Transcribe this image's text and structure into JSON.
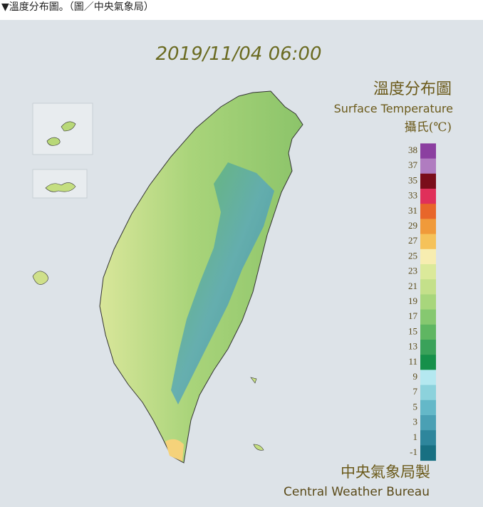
{
  "caption": "▼溫度分布圖。（圖／中央氣象局）",
  "map": {
    "timestamp": "2019/11/04 06:00",
    "legend": {
      "title": "溫度分布圖",
      "subtitle": "Surface Temperature",
      "unit": "攝氏(℃)",
      "labels": [
        38,
        37,
        35,
        33,
        31,
        29,
        27,
        25,
        23,
        21,
        19,
        17,
        15,
        13,
        11,
        9,
        7,
        5,
        3,
        1,
        -1
      ],
      "colors": [
        "#8b3fa0",
        "#b07cc0",
        "#7a0d1a",
        "#e0305a",
        "#e8662a",
        "#f09a3a",
        "#f5c25a",
        "#f7edb0",
        "#dbe99a",
        "#c4e08a",
        "#a8d67c",
        "#86c870",
        "#5fb662",
        "#3aa25a",
        "#16904a",
        "#b4e8f0",
        "#8cd2dc",
        "#64b8c8",
        "#4aa0b4",
        "#2e869c",
        "#187082"
      ]
    },
    "credit": {
      "zh": "中央氣象局製",
      "en": "Central Weather Bureau"
    }
  }
}
